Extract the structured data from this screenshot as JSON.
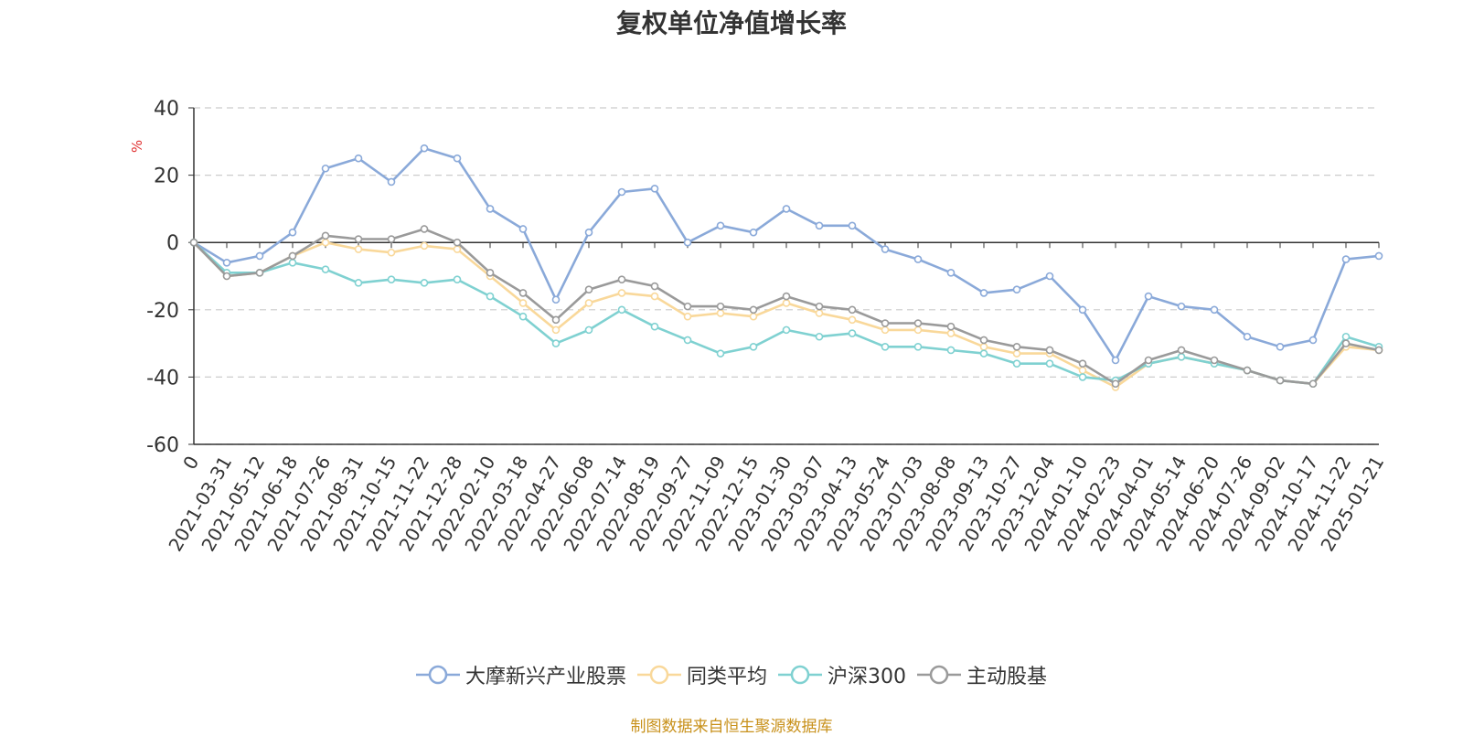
{
  "chart_data": {
    "type": "line",
    "title": "复权单位净值增长率",
    "ylabel": "%",
    "ylim": [
      -60,
      40
    ],
    "yticks": [
      40,
      20,
      0,
      -20,
      -40,
      -60
    ],
    "grid": true,
    "legend_position": "bottom",
    "x": [
      "0",
      "2021-03-31",
      "2021-05-12",
      "2021-06-18",
      "2021-07-26",
      "2021-08-31",
      "2021-10-15",
      "2021-11-22",
      "2021-12-28",
      "2022-02-10",
      "2022-03-18",
      "2022-04-27",
      "2022-06-08",
      "2022-07-14",
      "2022-08-19",
      "2022-09-27",
      "2022-11-09",
      "2022-12-15",
      "2023-01-30",
      "2023-03-07",
      "2023-04-13",
      "2023-05-24",
      "2023-07-03",
      "2023-08-08",
      "2023-09-13",
      "2023-10-27",
      "2023-12-04",
      "2024-01-10",
      "2024-02-23",
      "2024-04-01",
      "2024-05-14",
      "2024-06-20",
      "2024-07-26",
      "2024-09-02",
      "2024-10-17",
      "2024-11-22",
      "2025-01-21"
    ],
    "series": [
      {
        "name": "大摩新兴产业股票",
        "color": "#8aa9d9",
        "values": [
          0,
          -6,
          -4,
          3,
          22,
          25,
          18,
          28,
          25,
          10,
          4,
          -17,
          3,
          15,
          16,
          0,
          5,
          3,
          10,
          5,
          5,
          -2,
          -5,
          -9,
          -15,
          -14,
          -10,
          -20,
          -35,
          -16,
          -19,
          -20,
          -28,
          -31,
          -29,
          -5,
          -4
        ]
      },
      {
        "name": "同类平均",
        "color": "#f9d89a",
        "values": [
          0,
          -10,
          -9,
          -4,
          0,
          -2,
          -3,
          -1,
          -2,
          -10,
          -18,
          -26,
          -18,
          -15,
          -16,
          -22,
          -21,
          -22,
          -18,
          -21,
          -23,
          -26,
          -26,
          -27,
          -31,
          -33,
          -33,
          -38,
          -43,
          -36,
          -34,
          -36,
          -38,
          -41,
          -42,
          -31,
          -32
        ]
      },
      {
        "name": "沪深300",
        "color": "#7fd1d1",
        "values": [
          0,
          -9,
          -9,
          -6,
          -8,
          -12,
          -11,
          -12,
          -11,
          -16,
          -22,
          -30,
          -26,
          -20,
          -25,
          -29,
          -33,
          -31,
          -26,
          -28,
          -27,
          -31,
          -31,
          -32,
          -33,
          -36,
          -36,
          -40,
          -41,
          -36,
          -34,
          -36,
          -38,
          -41,
          -42,
          -28,
          -31
        ]
      },
      {
        "name": "主动股基",
        "color": "#9a9a9a",
        "values": [
          0,
          -10,
          -9,
          -4,
          2,
          1,
          1,
          4,
          0,
          -9,
          -15,
          -23,
          -14,
          -11,
          -13,
          -19,
          -19,
          -20,
          -16,
          -19,
          -20,
          -24,
          -24,
          -25,
          -29,
          -31,
          -32,
          -36,
          -42,
          -35,
          -32,
          -35,
          -38,
          -41,
          -42,
          -30,
          -32
        ]
      }
    ]
  },
  "source_note": "制图数据来自恒生聚源数据库"
}
